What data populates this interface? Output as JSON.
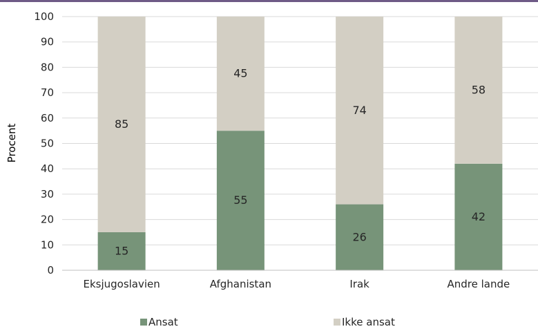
{
  "colors": {
    "rule": "#6e5a86",
    "ansat": "#779479",
    "ikke_ansat": "#d3cfc4",
    "grid": "#d9d9d9",
    "axis": "#bfbfbf",
    "text": "#262626"
  },
  "chart_data": {
    "type": "bar",
    "stacked": true,
    "title": "",
    "xlabel": "",
    "ylabel": "Procent",
    "ylim": [
      0,
      100
    ],
    "yticks": [
      0,
      10,
      20,
      30,
      40,
      50,
      60,
      70,
      80,
      90,
      100
    ],
    "grid": true,
    "legend_position": "bottom",
    "categories": [
      "Eksjugoslavien",
      "Afghanistan",
      "Irak",
      "Andre lande"
    ],
    "series": [
      {
        "name": "Ansat",
        "values": [
          15,
          55,
          26,
          42
        ],
        "color": "#779479"
      },
      {
        "name": "Ikke ansat",
        "values": [
          85,
          45,
          74,
          58
        ],
        "color": "#d3cfc4"
      }
    ]
  }
}
